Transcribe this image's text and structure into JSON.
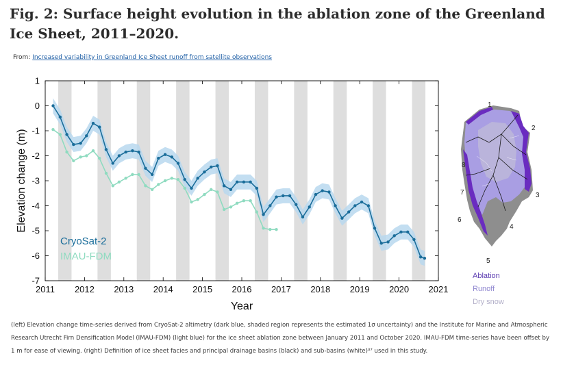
{
  "figure": {
    "title": "Fig. 2: Surface height evolution in the ablation zone of the Greenland Ice Sheet, 2011–2020.",
    "from_label": "From:",
    "from_link": "Increased variability in Greenland Ice Sheet runoff from satellite observations",
    "caption": "(left) Elevation change time-series derived from CryoSat-2 altimetry (dark blue, shaded region represents the estimated 1σ uncertainty) and the Institute for Marine and Atmospheric Research Utrecht Firn Densification Model (IMAU-FDM) (light blue) for the ice sheet ablation zone between January 2011 and October 2020. IMAU-FDM time-series have been offset by 1 m for ease of viewing. (right) Definition of ice sheet facies and principal drainage basins (black) and sub-basins (white)³⁷ used in this study."
  },
  "colors": {
    "cryosat": "#1a6d9a",
    "cryosat_band": "#b9d8ef",
    "imau": "#8fdbc0",
    "summer_band": "#dedede",
    "ablation": "#6a2cc0",
    "runoff": "#a99ee3",
    "dry_snow": "#c9c6d6",
    "map_gray": "#8e8e8e"
  },
  "chart_data": [
    {
      "type": "line",
      "title": "",
      "xlabel": "Year",
      "ylabel": "Elevation change (m)",
      "xlim": [
        2011,
        2021
      ],
      "ylim": [
        -7,
        1
      ],
      "xticks": [
        2011,
        2012,
        2013,
        2014,
        2015,
        2016,
        2017,
        2018,
        2019,
        2020,
        2021
      ],
      "yticks": [
        1,
        0,
        -1,
        -2,
        -3,
        -4,
        -5,
        -6,
        -7
      ],
      "shaded_summers": [
        [
          2011.33,
          2011.67
        ],
        [
          2012.33,
          2012.67
        ],
        [
          2013.33,
          2013.67
        ],
        [
          2014.33,
          2014.67
        ],
        [
          2015.33,
          2015.67
        ],
        [
          2016.33,
          2016.67
        ],
        [
          2017.33,
          2017.67
        ],
        [
          2018.33,
          2018.67
        ],
        [
          2019.33,
          2019.67
        ],
        [
          2020.33,
          2020.67
        ]
      ],
      "legend_position": "bottom-left",
      "series": [
        {
          "name": "CryoSat-2",
          "uncertainty": 0.3,
          "x": [
            2011.2,
            2011.38,
            2011.55,
            2011.72,
            2011.9,
            2012.05,
            2012.22,
            2012.38,
            2012.55,
            2012.72,
            2012.88,
            2013.05,
            2013.22,
            2013.38,
            2013.55,
            2013.72,
            2013.88,
            2014.05,
            2014.22,
            2014.38,
            2014.55,
            2014.72,
            2014.88,
            2015.05,
            2015.22,
            2015.38,
            2015.55,
            2015.72,
            2015.88,
            2016.05,
            2016.22,
            2016.38,
            2016.55,
            2016.72,
            2016.88,
            2017.05,
            2017.22,
            2017.38,
            2017.55,
            2017.72,
            2017.88,
            2018.05,
            2018.22,
            2018.38,
            2018.55,
            2018.72,
            2018.88,
            2019.05,
            2019.22,
            2019.38,
            2019.55,
            2019.72,
            2019.88,
            2020.05,
            2020.22,
            2020.38,
            2020.55,
            2020.65
          ],
          "values": [
            0.0,
            -0.45,
            -1.15,
            -1.55,
            -1.5,
            -1.2,
            -0.7,
            -0.85,
            -1.75,
            -2.3,
            -2.0,
            -1.85,
            -1.8,
            -1.85,
            -2.5,
            -2.75,
            -2.1,
            -1.95,
            -2.05,
            -2.3,
            -2.95,
            -3.3,
            -2.9,
            -2.65,
            -2.45,
            -2.4,
            -3.2,
            -3.35,
            -3.05,
            -3.05,
            -3.05,
            -3.3,
            -4.35,
            -4.0,
            -3.65,
            -3.6,
            -3.6,
            -3.95,
            -4.45,
            -4.05,
            -3.55,
            -3.4,
            -3.45,
            -4.0,
            -4.5,
            -4.25,
            -4.0,
            -3.85,
            -4.0,
            -4.9,
            -5.5,
            -5.45,
            -5.2,
            -5.05,
            -5.05,
            -5.35,
            -6.05,
            -6.1
          ]
        },
        {
          "name": "IMAU-FDM",
          "x": [
            2011.2,
            2011.38,
            2011.55,
            2011.72,
            2011.9,
            2012.05,
            2012.22,
            2012.38,
            2012.55,
            2012.72,
            2012.88,
            2013.05,
            2013.22,
            2013.38,
            2013.55,
            2013.72,
            2013.88,
            2014.05,
            2014.22,
            2014.38,
            2014.55,
            2014.72,
            2014.88,
            2015.05,
            2015.22,
            2015.38,
            2015.55,
            2015.72,
            2015.88,
            2016.05,
            2016.22,
            2016.38,
            2016.55,
            2016.72,
            2016.88
          ],
          "values": [
            -0.95,
            -1.15,
            -1.85,
            -2.2,
            -2.05,
            -2.0,
            -1.8,
            -2.1,
            -2.7,
            -3.2,
            -3.05,
            -2.9,
            -2.75,
            -2.75,
            -3.2,
            -3.35,
            -3.15,
            -3.0,
            -2.9,
            -2.95,
            -3.3,
            -3.85,
            -3.75,
            -3.55,
            -3.35,
            -3.45,
            -4.15,
            -4.05,
            -3.9,
            -3.8,
            -3.8,
            -4.25,
            -4.9,
            -4.95,
            -4.95
          ]
        }
      ]
    },
    {
      "type": "map",
      "basin_labels": [
        "1",
        "2",
        "3",
        "4",
        "5",
        "6",
        "7",
        "8"
      ],
      "legend": [
        "Ablation",
        "Runoff",
        "Dry snow"
      ]
    }
  ]
}
